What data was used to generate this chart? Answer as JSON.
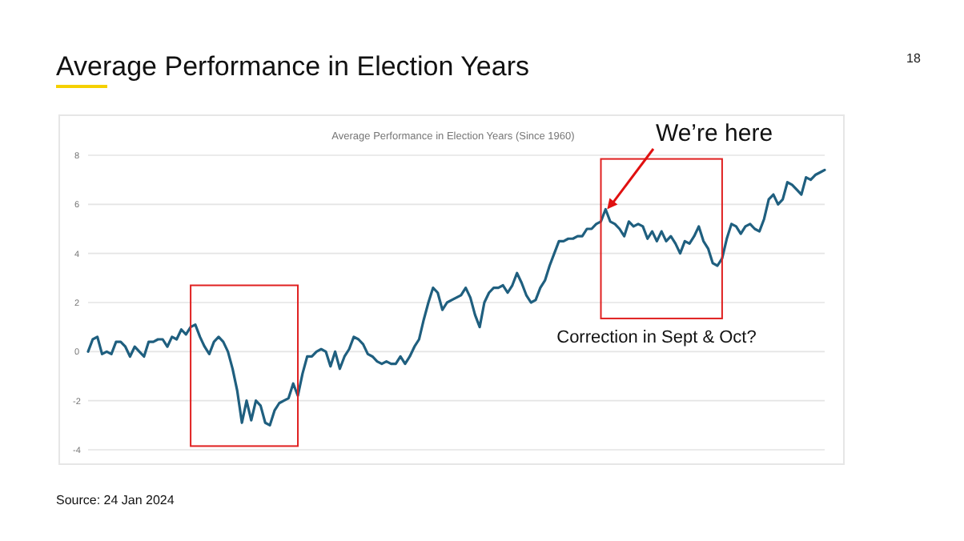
{
  "chart_data": {
    "type": "line",
    "title": "Average Performance in Election Years",
    "subtitle": "Average Performance in Election Years (Since 1960)",
    "annotations": [
      "18",
      "We’re here",
      "Correction in Sept & Oct?",
      "Source: 24 Jan 2024"
    ],
    "categories": [
      null,
      null,
      null,
      null,
      null,
      null,
      null,
      null,
      null,
      null,
      null,
      null,
      null,
      null,
      null,
      null,
      null,
      null,
      null,
      null,
      null,
      null,
      null,
      null,
      null,
      null,
      null,
      null,
      null,
      null,
      null,
      null,
      null,
      null,
      null,
      null,
      null,
      null,
      null,
      null,
      null,
      null,
      null,
      null,
      null,
      null,
      null,
      null,
      null,
      null,
      null,
      null,
      null,
      null,
      null,
      null,
      null,
      null,
      null,
      null,
      null,
      null,
      null,
      null,
      null,
      null,
      null,
      null,
      null,
      null,
      null,
      null,
      null,
      null,
      null,
      null,
      null,
      null,
      null,
      null,
      null,
      null,
      null,
      null,
      null,
      null,
      null,
      null,
      null,
      null,
      null,
      null,
      null,
      null,
      null,
      null,
      null,
      null,
      null,
      null,
      null,
      null,
      null,
      null,
      null,
      null,
      null,
      null,
      null,
      null,
      null,
      null,
      null,
      null,
      null,
      null,
      null,
      null,
      null,
      null,
      null,
      null,
      null,
      null,
      null,
      null,
      null,
      null,
      null,
      null,
      null,
      null,
      null,
      null,
      null,
      null,
      null,
      null,
      null,
      null,
      null,
      null,
      null,
      null,
      null,
      null,
      null,
      null,
      null,
      null,
      null,
      null,
      null,
      null,
      null,
      null,
      null,
      null,
      null
    ],
    "series": [
      {
        "color": "#1f5f7f",
        "values": [
          0,
          0.5,
          0.6,
          -0.1,
          0,
          -0.1,
          0.4,
          0.4,
          0.2,
          -0.2,
          0.2,
          0,
          -0.2,
          0.4,
          0.4,
          0.5,
          0.5,
          0.2,
          0.6,
          0.5,
          0.9,
          0.7,
          1,
          1.1,
          0.6,
          0.2,
          -0.1,
          0.4,
          0.6,
          0.4,
          0,
          -0.7,
          -1.6,
          -2.9,
          -2,
          -2.8,
          -2,
          -2.2,
          -2.9,
          -3,
          -2.4,
          -2.1,
          -2,
          -1.9,
          -1.3,
          -1.8,
          -0.9,
          -0.2,
          -0.2,
          0,
          0.1,
          0,
          -0.6,
          0,
          -0.7,
          -0.2,
          0.1,
          0.6,
          0.5,
          0.3,
          -0.1,
          -0.2,
          -0.4,
          -0.5,
          -0.4,
          -0.5,
          -0.5,
          -0.2,
          -0.5,
          -0.2,
          0.2,
          0.5,
          1.3,
          2,
          2.6,
          2.4,
          1.7,
          2,
          2.1,
          2.2,
          2.3,
          2.6,
          2.2,
          1.5,
          1,
          2,
          2.4,
          2.6,
          2.6,
          2.7,
          2.4,
          2.7,
          3.2,
          2.8,
          2.3,
          2,
          2.1,
          2.6,
          2.9,
          3.5,
          4,
          4.5,
          4.5,
          4.6,
          4.6,
          4.7,
          4.7,
          5,
          5,
          5.2,
          5.3,
          5.8,
          5.3,
          5.2,
          5,
          4.7,
          5.3,
          5.1,
          5.2,
          5.1,
          4.6,
          4.9,
          4.5,
          4.9,
          4.5,
          4.7,
          4.4,
          4,
          4.5,
          4.4,
          4.7,
          5.1,
          4.5,
          4.2,
          3.6,
          3.5,
          3.8,
          4.6,
          5.2,
          5.1,
          4.8,
          5.1,
          5.2,
          5,
          4.9,
          5.4,
          6.2,
          6.4,
          6,
          6.2,
          6.9,
          6.8,
          6.6,
          6.4,
          7.1,
          7,
          7.2,
          7.3,
          7.4
        ]
      }
    ],
    "ylim": [
      -4,
      8
    ],
    "yticks": [
      -4,
      -2,
      0,
      2,
      4,
      6,
      8
    ],
    "grid": "y",
    "line_style": "solid",
    "marker": "none"
  }
}
